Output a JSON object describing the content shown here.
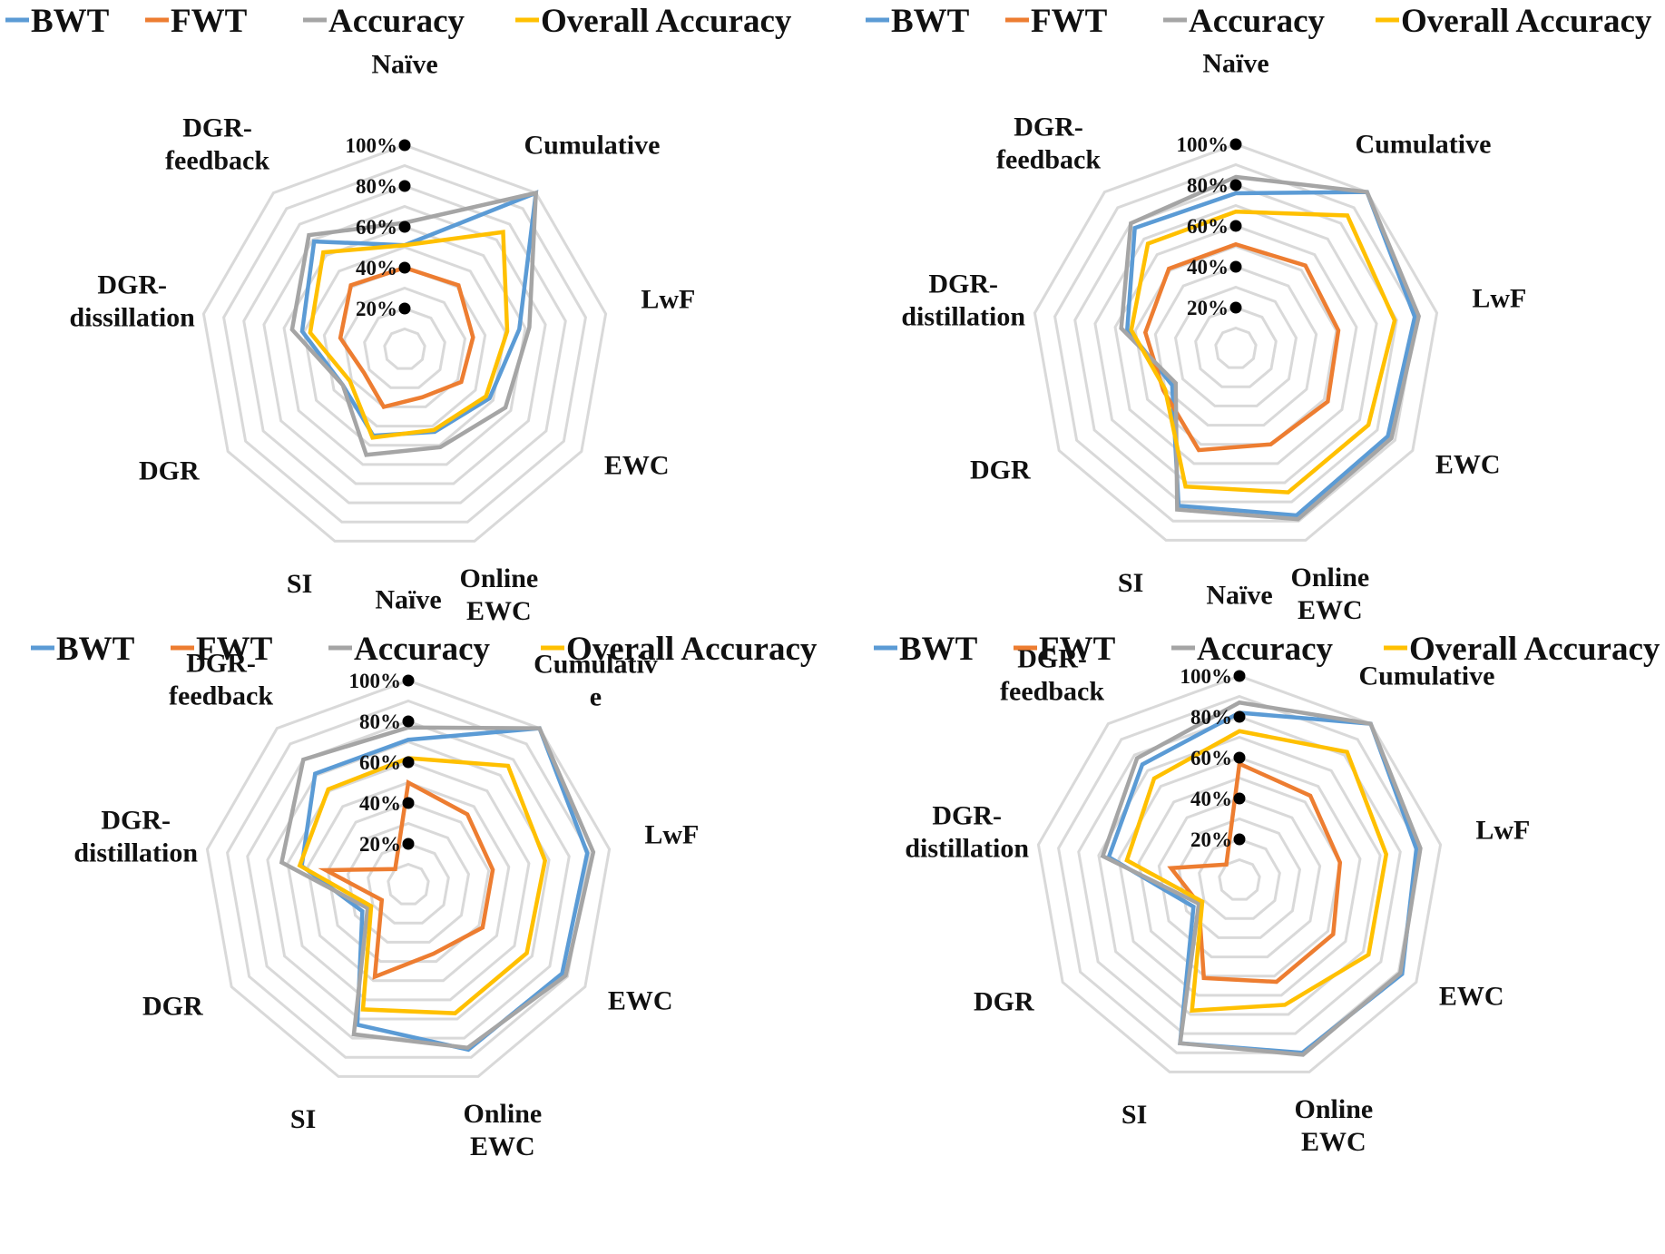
{
  "chart_data": [
    {
      "type": "radar",
      "categories": [
        "Naïve",
        "Cumulative",
        "LwF",
        "EWC",
        "Online EWC",
        "SI",
        "DGR",
        "DGR-dissillation",
        "DGR-feedback"
      ],
      "ticks": [
        "20%",
        "40%",
        "60%",
        "80%",
        "100%"
      ],
      "ylim": [
        0,
        100
      ],
      "legend": "top",
      "series": [
        {
          "name": "BWT",
          "values": [
            51,
            100,
            57,
            48,
            43,
            45,
            35,
            51,
            69
          ]
        },
        {
          "name": "FWT",
          "values": [
            40,
            41,
            34,
            32,
            25,
            30,
            23,
            32,
            41
          ]
        },
        {
          "name": "Accuracy",
          "values": [
            62,
            100,
            62,
            57,
            51,
            55,
            35,
            56,
            73
          ]
        },
        {
          "name": "Overall Accuracy",
          "values": [
            51,
            75,
            51,
            46,
            42,
            46,
            31,
            47,
            62
          ]
        }
      ]
    },
    {
      "type": "radar",
      "categories": [
        "Naïve",
        "Cumulative",
        "LwF",
        "EWC",
        "Online EWC",
        "SI",
        "DGR",
        "DGR-distillation",
        "DGR-feedback"
      ],
      "ticks": [
        "20%",
        "40%",
        "60%",
        "80%",
        "100%"
      ],
      "ylim": [
        0,
        100
      ],
      "legend": "top",
      "series": [
        {
          "name": "BWT",
          "values": [
            76,
            100,
            89,
            86,
            87,
            82,
            36,
            54,
            77
          ]
        },
        {
          "name": "FWT",
          "values": [
            51,
            53,
            51,
            52,
            50,
            53,
            41,
            45,
            51
          ]
        },
        {
          "name": "Accuracy",
          "values": [
            84,
            100,
            91,
            88,
            89,
            84,
            34,
            57,
            80
          ]
        },
        {
          "name": "Overall Accuracy",
          "values": [
            67,
            85,
            79,
            75,
            75,
            72,
            40,
            52,
            67
          ]
        }
      ]
    },
    {
      "type": "radar",
      "categories": [
        "Naïve",
        "Cumulativ e",
        "LwF",
        "EWC",
        "Online EWC",
        "SI",
        "DGR",
        "DGR-distillation",
        "DGR-feedback"
      ],
      "ticks": [
        "20%",
        "40%",
        "60%",
        "80%",
        "100%"
      ],
      "ylim": [
        0,
        100
      ],
      "legend": "top",
      "series": [
        {
          "name": "BWT",
          "values": [
            71,
            100,
            89,
            87,
            86,
            73,
            26,
            53,
            71
          ]
        },
        {
          "name": "FWT",
          "values": [
            50,
            45,
            42,
            42,
            36,
            48,
            15,
            41,
            10
          ]
        },
        {
          "name": "Accuracy",
          "values": [
            77,
            100,
            92,
            89,
            85,
            78,
            23,
            63,
            80
          ]
        },
        {
          "name": "Overall Accuracy",
          "values": [
            62,
            76,
            68,
            67,
            67,
            65,
            21,
            54,
            61
          ]
        }
      ]
    },
    {
      "type": "radar",
      "categories": [
        "Naïve",
        "Cumulative",
        "LwF",
        "EWC",
        "Online EWC",
        "SI",
        "DGR",
        "DGR-distillation",
        "DGR-feedback"
      ],
      "ticks": [
        "20%",
        "40%",
        "60%",
        "80%",
        "100%"
      ],
      "ylim": [
        0,
        100
      ],
      "legend": "top",
      "series": [
        {
          "name": "BWT",
          "values": [
            82,
            100,
            88,
            92,
            90,
            85,
            26,
            65,
            74
          ]
        },
        {
          "name": "FWT",
          "values": [
            57,
            54,
            50,
            53,
            53,
            51,
            23,
            34,
            10
          ]
        },
        {
          "name": "Accuracy",
          "values": [
            87,
            100,
            90,
            91,
            91,
            85,
            23,
            68,
            78
          ]
        },
        {
          "name": "Overall Accuracy",
          "values": [
            73,
            82,
            73,
            73,
            65,
            68,
            21,
            56,
            65
          ]
        }
      ]
    }
  ],
  "colors": {
    "BWT": "#5b9bd5",
    "FWT": "#ed7d31",
    "Accuracy": "#a5a5a5",
    "Overall Accuracy": "#ffc000",
    "grid": "#d9d9d9"
  }
}
